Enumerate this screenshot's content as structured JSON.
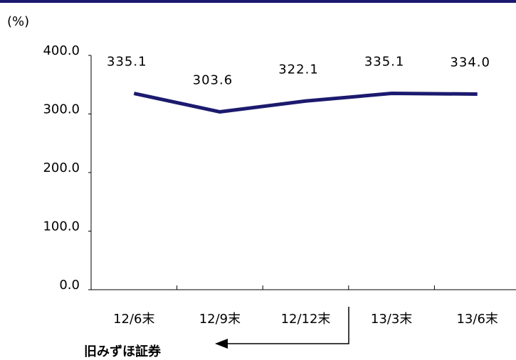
{
  "chart_data": {
    "type": "line",
    "unit_label": "(%)",
    "categories": [
      "12/6末",
      "12/9末",
      "12/12末",
      "13/3末",
      "13/6末"
    ],
    "series": [
      {
        "name": null,
        "color": "#1c1a6e",
        "values": [
          335.1,
          303.6,
          322.1,
          335.1,
          334.0
        ],
        "value_labels": [
          "335.1",
          "303.6",
          "322.1",
          "335.1",
          "334.0"
        ],
        "label_color": "#1f1f8a"
      }
    ],
    "ylim": [
      0,
      400
    ],
    "yticks": [
      {
        "value": 0,
        "label": "0.0"
      },
      {
        "value": 100,
        "label": "100.0"
      },
      {
        "value": 200,
        "label": "200.0"
      },
      {
        "value": 300,
        "label": "300.0"
      },
      {
        "value": 400,
        "label": "400.0"
      }
    ],
    "annotation": "旧みずほ証券",
    "annotation_color": "#1a1ad0"
  }
}
